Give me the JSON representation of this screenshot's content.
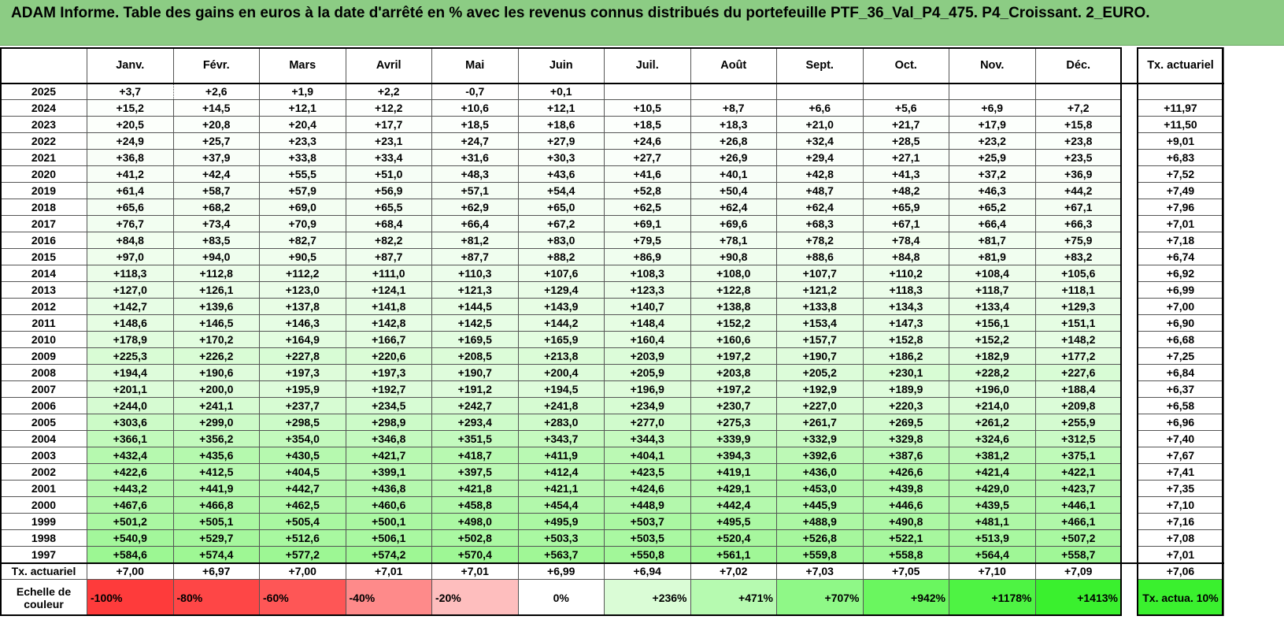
{
  "title": "ADAM Informe. Table des gains en euros à la date d'arrêté en % avec les revenus connus distribués du portefeuille PTF_36_Val_P4_475. P4_Croissant. 2_EURO.",
  "months": [
    "Janv.",
    "Févr.",
    "Mars",
    "Avril",
    "Mai",
    "Juin",
    "Juil.",
    "Août",
    "Sept.",
    "Oct.",
    "Nov.",
    "Déc."
  ],
  "rate_header": "Tx. actuariel",
  "rows": [
    {
      "year": "2025",
      "values": [
        "+3,7",
        "+2,6",
        "+1,9",
        "+2,2",
        "-0,7",
        "+0,1",
        "",
        "",
        "",
        "",
        "",
        ""
      ],
      "rate": ""
    },
    {
      "year": "2024",
      "values": [
        "+15,2",
        "+14,5",
        "+12,1",
        "+12,2",
        "+10,6",
        "+12,1",
        "+10,5",
        "+8,7",
        "+6,6",
        "+5,6",
        "+6,9",
        "+7,2"
      ],
      "rate": "+11,97"
    },
    {
      "year": "2023",
      "values": [
        "+20,5",
        "+20,8",
        "+20,4",
        "+17,7",
        "+18,5",
        "+18,6",
        "+18,5",
        "+18,3",
        "+21,0",
        "+21,7",
        "+17,9",
        "+15,8"
      ],
      "rate": "+11,50"
    },
    {
      "year": "2022",
      "values": [
        "+24,9",
        "+25,7",
        "+23,3",
        "+23,1",
        "+24,7",
        "+27,9",
        "+24,6",
        "+26,8",
        "+32,4",
        "+28,5",
        "+23,2",
        "+23,8"
      ],
      "rate": "+9,01"
    },
    {
      "year": "2021",
      "values": [
        "+36,8",
        "+37,9",
        "+33,8",
        "+33,4",
        "+31,6",
        "+30,3",
        "+27,7",
        "+26,9",
        "+29,4",
        "+27,1",
        "+25,9",
        "+23,5"
      ],
      "rate": "+6,83"
    },
    {
      "year": "2020",
      "values": [
        "+41,2",
        "+42,4",
        "+55,5",
        "+51,0",
        "+48,3",
        "+43,6",
        "+41,6",
        "+40,1",
        "+42,8",
        "+41,3",
        "+37,2",
        "+36,9"
      ],
      "rate": "+7,52"
    },
    {
      "year": "2019",
      "values": [
        "+61,4",
        "+58,7",
        "+57,9",
        "+56,9",
        "+57,1",
        "+54,4",
        "+52,8",
        "+50,4",
        "+48,7",
        "+48,2",
        "+46,3",
        "+44,2"
      ],
      "rate": "+7,49"
    },
    {
      "year": "2018",
      "values": [
        "+65,6",
        "+68,2",
        "+69,0",
        "+65,5",
        "+62,9",
        "+65,0",
        "+62,5",
        "+62,4",
        "+62,4",
        "+65,9",
        "+65,2",
        "+67,1"
      ],
      "rate": "+7,96"
    },
    {
      "year": "2017",
      "values": [
        "+76,7",
        "+73,4",
        "+70,9",
        "+68,4",
        "+66,4",
        "+67,2",
        "+69,1",
        "+69,6",
        "+68,3",
        "+67,1",
        "+66,4",
        "+66,3"
      ],
      "rate": "+7,01"
    },
    {
      "year": "2016",
      "values": [
        "+84,8",
        "+83,5",
        "+82,7",
        "+82,2",
        "+81,2",
        "+83,0",
        "+79,5",
        "+78,1",
        "+78,2",
        "+78,4",
        "+81,7",
        "+75,9"
      ],
      "rate": "+7,18"
    },
    {
      "year": "2015",
      "values": [
        "+97,0",
        "+94,0",
        "+90,5",
        "+87,7",
        "+87,7",
        "+88,2",
        "+86,9",
        "+90,8",
        "+88,6",
        "+84,8",
        "+81,9",
        "+83,2"
      ],
      "rate": "+6,74"
    },
    {
      "year": "2014",
      "values": [
        "+118,3",
        "+112,8",
        "+112,2",
        "+111,0",
        "+110,3",
        "+107,6",
        "+108,3",
        "+108,0",
        "+107,7",
        "+110,2",
        "+108,4",
        "+105,6"
      ],
      "rate": "+6,92"
    },
    {
      "year": "2013",
      "values": [
        "+127,0",
        "+126,1",
        "+123,0",
        "+124,1",
        "+121,3",
        "+129,4",
        "+123,3",
        "+122,8",
        "+121,2",
        "+118,3",
        "+118,7",
        "+118,1"
      ],
      "rate": "+6,99"
    },
    {
      "year": "2012",
      "values": [
        "+142,7",
        "+139,6",
        "+137,8",
        "+141,8",
        "+144,5",
        "+143,9",
        "+140,7",
        "+138,8",
        "+133,8",
        "+134,3",
        "+133,4",
        "+129,3"
      ],
      "rate": "+7,00"
    },
    {
      "year": "2011",
      "values": [
        "+148,6",
        "+146,5",
        "+146,3",
        "+142,8",
        "+142,5",
        "+144,2",
        "+148,4",
        "+152,2",
        "+153,4",
        "+147,3",
        "+156,1",
        "+151,1"
      ],
      "rate": "+6,90"
    },
    {
      "year": "2010",
      "values": [
        "+178,9",
        "+170,2",
        "+164,9",
        "+166,7",
        "+169,5",
        "+165,9",
        "+160,4",
        "+160,6",
        "+157,7",
        "+152,8",
        "+152,2",
        "+148,2"
      ],
      "rate": "+6,68"
    },
    {
      "year": "2009",
      "values": [
        "+225,3",
        "+226,2",
        "+227,8",
        "+220,6",
        "+208,5",
        "+213,8",
        "+203,9",
        "+197,2",
        "+190,7",
        "+186,2",
        "+182,9",
        "+177,2"
      ],
      "rate": "+7,25"
    },
    {
      "year": "2008",
      "values": [
        "+194,4",
        "+190,6",
        "+197,3",
        "+197,3",
        "+190,7",
        "+200,4",
        "+205,9",
        "+203,8",
        "+205,2",
        "+230,1",
        "+228,2",
        "+227,6"
      ],
      "rate": "+6,84"
    },
    {
      "year": "2007",
      "values": [
        "+201,1",
        "+200,0",
        "+195,9",
        "+192,7",
        "+191,2",
        "+194,5",
        "+196,9",
        "+197,2",
        "+192,9",
        "+189,9",
        "+196,0",
        "+188,4"
      ],
      "rate": "+6,37"
    },
    {
      "year": "2006",
      "values": [
        "+244,0",
        "+241,1",
        "+237,7",
        "+234,5",
        "+242,7",
        "+241,8",
        "+234,9",
        "+230,7",
        "+227,0",
        "+220,3",
        "+214,0",
        "+209,8"
      ],
      "rate": "+6,58"
    },
    {
      "year": "2005",
      "values": [
        "+303,6",
        "+299,0",
        "+298,5",
        "+298,9",
        "+293,4",
        "+283,0",
        "+277,0",
        "+275,3",
        "+261,7",
        "+269,5",
        "+261,2",
        "+255,9"
      ],
      "rate": "+6,96"
    },
    {
      "year": "2004",
      "values": [
        "+366,1",
        "+356,2",
        "+354,0",
        "+346,8",
        "+351,5",
        "+343,7",
        "+344,3",
        "+339,9",
        "+332,9",
        "+329,8",
        "+324,6",
        "+312,5"
      ],
      "rate": "+7,40"
    },
    {
      "year": "2003",
      "values": [
        "+432,4",
        "+435,6",
        "+430,5",
        "+421,7",
        "+418,7",
        "+411,9",
        "+404,1",
        "+394,3",
        "+392,6",
        "+387,6",
        "+381,2",
        "+375,1"
      ],
      "rate": "+7,67"
    },
    {
      "year": "2002",
      "values": [
        "+422,6",
        "+412,5",
        "+404,5",
        "+399,1",
        "+397,5",
        "+412,4",
        "+423,5",
        "+419,1",
        "+436,0",
        "+426,6",
        "+421,4",
        "+422,1"
      ],
      "rate": "+7,41"
    },
    {
      "year": "2001",
      "values": [
        "+443,2",
        "+441,9",
        "+442,7",
        "+436,8",
        "+421,8",
        "+421,1",
        "+424,6",
        "+429,1",
        "+453,0",
        "+439,8",
        "+429,0",
        "+423,7"
      ],
      "rate": "+7,35"
    },
    {
      "year": "2000",
      "values": [
        "+467,6",
        "+466,8",
        "+462,5",
        "+460,6",
        "+458,8",
        "+454,4",
        "+448,9",
        "+442,4",
        "+445,9",
        "+446,6",
        "+439,5",
        "+446,1"
      ],
      "rate": "+7,10"
    },
    {
      "year": "1999",
      "values": [
        "+501,2",
        "+505,1",
        "+505,4",
        "+500,1",
        "+498,0",
        "+495,9",
        "+503,7",
        "+495,5",
        "+488,9",
        "+490,8",
        "+481,1",
        "+466,1"
      ],
      "rate": "+7,16"
    },
    {
      "year": "1998",
      "values": [
        "+540,9",
        "+529,7",
        "+512,6",
        "+506,1",
        "+502,8",
        "+503,3",
        "+503,5",
        "+520,4",
        "+526,8",
        "+522,1",
        "+513,9",
        "+507,2"
      ],
      "rate": "+7,08"
    },
    {
      "year": "1997",
      "values": [
        "+584,6",
        "+574,4",
        "+577,2",
        "+574,2",
        "+570,4",
        "+563,7",
        "+550,8",
        "+561,1",
        "+559,8",
        "+558,8",
        "+564,4",
        "+558,7"
      ],
      "rate": "+7,01"
    }
  ],
  "summary": {
    "label": "Tx. actuariel",
    "values": [
      "+7,00",
      "+6,97",
      "+7,00",
      "+7,01",
      "+7,01",
      "+6,99",
      "+6,94",
      "+7,02",
      "+7,03",
      "+7,05",
      "+7,10",
      "+7,09"
    ],
    "rate": "+7,06"
  },
  "scale": {
    "label": "Echelle de couleur",
    "items": [
      {
        "text": "-100%",
        "color": "#fe3b3b",
        "align": "left"
      },
      {
        "text": "-80%",
        "color": "#fe4646",
        "align": "left"
      },
      {
        "text": "-60%",
        "color": "#fe5656",
        "align": "left"
      },
      {
        "text": "-40%",
        "color": "#fe8a8a",
        "align": "left"
      },
      {
        "text": "-20%",
        "color": "#febebe",
        "align": "left"
      },
      {
        "text": "0%",
        "color": "#ffffff",
        "align": "center"
      },
      {
        "text": "+236%",
        "color": "#dafcd6",
        "align": "right"
      },
      {
        "text": "+471%",
        "color": "#b6fab0",
        "align": "right"
      },
      {
        "text": "+707%",
        "color": "#8ff887",
        "align": "right"
      },
      {
        "text": "+942%",
        "color": "#6af65f",
        "align": "right"
      },
      {
        "text": "+1178%",
        "color": "#4ef343",
        "align": "right"
      },
      {
        "text": "+1413%",
        "color": "#3af02e",
        "align": "right"
      }
    ],
    "rate_label": "Tx. actua. 10%",
    "rate_color": "#3af02e"
  }
}
